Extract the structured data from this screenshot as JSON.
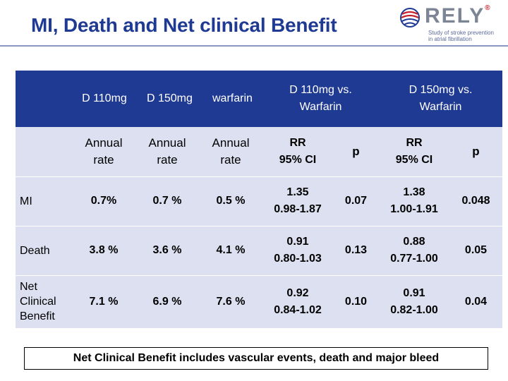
{
  "title": "MI, Death and Net clinical Benefit",
  "logo": {
    "word": "RELY",
    "reg": "®",
    "tagline_1": "Study of stroke prevention",
    "tagline_2": "in atrial fibrillation"
  },
  "table": {
    "header": {
      "d110": "D 110mg",
      "d150": "D 150mg",
      "warfarin": "warfarin",
      "d110_vs_1": "D 110mg vs.",
      "d110_vs_2": "Warfarin",
      "d150_vs_1": "D 150mg vs.",
      "d150_vs_2": "Warfarin"
    },
    "subheader": {
      "annual_1": "Annual",
      "annual_2": "rate",
      "rr_1": "RR",
      "rr_2": "95% CI",
      "p": "p"
    },
    "rows": [
      {
        "label": "MI",
        "d110": "0.7%",
        "d150": "0.7 %",
        "warfarin": "0.5 %",
        "rr110": "1.35",
        "ci110": "0.98-1.87",
        "p110": "0.07",
        "rr150": "1.38",
        "ci150": "1.00-1.91",
        "p150": "0.048"
      },
      {
        "label": "Death",
        "d110": "3.8 %",
        "d150": "3.6 %",
        "warfarin": "4.1 %",
        "rr110": "0.91",
        "ci110": "0.80-1.03",
        "p110": "0.13",
        "rr150": "0.88",
        "ci150": "0.77-1.00",
        "p150": "0.05"
      },
      {
        "label_1": "Net",
        "label_2": "Clinical",
        "label_3": "Benefit",
        "d110": "7.1 %",
        "d150": "6.9 %",
        "warfarin": "7.6 %",
        "rr110": "0.92",
        "ci110": "0.84-1.02",
        "p110": "0.10",
        "rr150": "0.91",
        "ci150": "0.82-1.00",
        "p150": "0.04"
      }
    ]
  },
  "note": "Net Clinical Benefit includes vascular events, death and major bleed",
  "colors": {
    "title": "#1f3a93",
    "header_bg": "#1f3a93",
    "panel_bg": "#dde0f0",
    "logo_accent": "#c8202b"
  }
}
